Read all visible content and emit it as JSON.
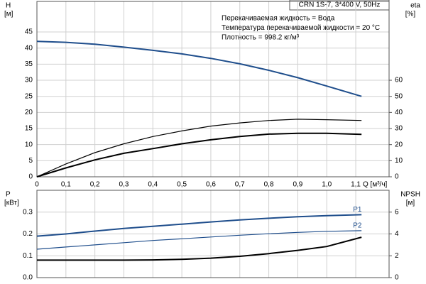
{
  "chart_data": [
    {
      "type": "line",
      "title": "CRN 1S-7, 3*400 V, 50Hz",
      "annotations": [
        "Перекачиваемая жидкость = Вода",
        "Температура перекачиваемой жидкости = 20 °C",
        "Плотность = 998.2 кг/м³"
      ],
      "ylabel": "H",
      "yunit": "[м]",
      "y2label": "eta",
      "y2unit": "[%]",
      "xlabel": "Q [м³/ч]",
      "x": [
        0,
        0.1,
        0.2,
        0.3,
        0.4,
        0.5,
        0.6,
        0.7,
        0.8,
        0.9,
        1.0,
        1.12
      ],
      "xlim": [
        0,
        1.215
      ],
      "ylim": [
        0,
        54.5
      ],
      "y2lim": [
        0,
        109
      ],
      "grid": true,
      "xticks": [
        0,
        {
          "value": 0.1,
          "label": "0,1"
        },
        {
          "value": 0.2,
          "label": "0,2"
        },
        {
          "value": 0.3,
          "label": "0,3"
        },
        {
          "value": 0.4,
          "label": "0,4"
        },
        {
          "value": 0.5,
          "label": "0,5"
        },
        {
          "value": 0.6,
          "label": "0,6"
        },
        {
          "value": 0.7,
          "label": "0,7"
        },
        {
          "value": 0.8,
          "label": "0,8"
        },
        {
          "value": 0.9,
          "label": "0,9"
        },
        {
          "value": 1.0,
          "label": "1,0"
        },
        {
          "value": 1.1,
          "label": "1,1"
        }
      ],
      "yticks": [
        0,
        5,
        10,
        15,
        20,
        25,
        30,
        35,
        40,
        45
      ],
      "y2ticks": [
        0,
        10,
        20,
        30,
        40,
        50,
        60
      ],
      "series": [
        {
          "color": "#1f4e8c",
          "width": 2,
          "values": [
            42.1,
            41.8,
            41.2,
            40.3,
            39.3,
            38.2,
            36.8,
            35.1,
            33.1,
            30.8,
            28.2,
            25
          ]
        },
        {
          "color": "#000000",
          "width": 1.2,
          "axis": "y2",
          "values": [
            0,
            8,
            15,
            20.5,
            25,
            28.5,
            31.5,
            33.5,
            35,
            35.8,
            35.5,
            35
          ]
        },
        {
          "color": "#000000",
          "width": 2,
          "axis": "y2",
          "values": [
            0,
            5.5,
            10.5,
            14.6,
            17.5,
            20.5,
            23,
            25,
            26.5,
            27,
            27,
            26.4
          ]
        }
      ]
    },
    {
      "type": "line",
      "ylabel": "P",
      "yunit": "[кВт]",
      "y2label": "NPSH",
      "y2unit": "[м]",
      "x": [
        0,
        0.1,
        0.2,
        0.3,
        0.4,
        0.5,
        0.6,
        0.7,
        0.8,
        0.9,
        1.0,
        1.12
      ],
      "xlim": [
        0,
        1.215
      ],
      "ylim": [
        0,
        0.4
      ],
      "y2lim": [
        0,
        8
      ],
      "grid": true,
      "xticks": [
        0,
        0.1,
        0.2,
        0.3,
        0.4,
        0.5,
        0.6,
        0.7,
        0.8,
        0.9,
        1.0,
        1.1
      ],
      "yticks": [
        {
          "value": 0,
          "label": "0.0"
        },
        0.1,
        0.2,
        0.3
      ],
      "y2ticks": [
        0,
        2,
        4,
        6
      ],
      "series": [
        {
          "name": "P1",
          "color": "#1f4e8c",
          "width": 2,
          "values": [
            0.19,
            0.2,
            0.213,
            0.225,
            0.235,
            0.245,
            0.255,
            0.264,
            0.272,
            0.279,
            0.284,
            0.288
          ]
        },
        {
          "name": "P2",
          "color": "#1f4e8c",
          "width": 1.2,
          "values": [
            0.13,
            0.14,
            0.15,
            0.16,
            0.17,
            0.178,
            0.186,
            0.194,
            0.201,
            0.207,
            0.212,
            0.215
          ]
        },
        {
          "color": "#000000",
          "width": 2,
          "axis": "y2",
          "values": [
            1.6,
            1.6,
            1.6,
            1.6,
            1.62,
            1.68,
            1.78,
            1.95,
            2.2,
            2.5,
            2.85,
            3.7
          ]
        }
      ]
    }
  ]
}
